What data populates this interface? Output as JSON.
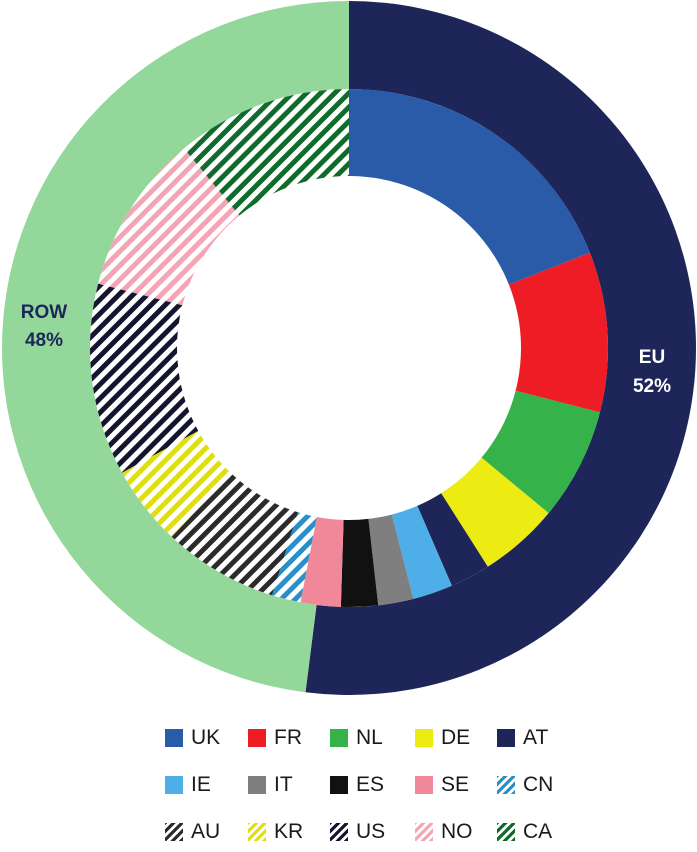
{
  "chart_data": {
    "type": "pie",
    "subtype": "nested-donut",
    "title": "",
    "outer_ring": [
      {
        "name": "EU",
        "label": "EU",
        "percent_label": "52%",
        "value": 52,
        "color": "#1e2659"
      },
      {
        "name": "ROW",
        "label": "ROW",
        "percent_label": "48%",
        "value": 48,
        "color": "#93d89a"
      }
    ],
    "inner_ring": [
      {
        "name": "UK",
        "value": 19.0,
        "group": "EU",
        "color": "#2a5ba8",
        "pattern": "solid"
      },
      {
        "name": "FR",
        "value": 10.0,
        "group": "EU",
        "color": "#ee1c25",
        "pattern": "solid"
      },
      {
        "name": "NL",
        "value": 7.0,
        "group": "EU",
        "color": "#35b34a",
        "pattern": "solid"
      },
      {
        "name": "DE",
        "value": 5.0,
        "group": "EU",
        "color": "#ecec13",
        "pattern": "solid"
      },
      {
        "name": "AT",
        "value": 2.5,
        "group": "EU",
        "color": "#1e2659",
        "pattern": "solid"
      },
      {
        "name": "IE",
        "value": 2.5,
        "group": "EU",
        "color": "#4daee8",
        "pattern": "solid"
      },
      {
        "name": "IT",
        "value": 2.2,
        "group": "EU",
        "color": "#7f7f7f",
        "pattern": "solid"
      },
      {
        "name": "ES",
        "value": 2.3,
        "group": "EU",
        "color": "#111111",
        "pattern": "solid"
      },
      {
        "name": "SE",
        "value": 2.5,
        "group": "EU",
        "color": "#f1889a",
        "pattern": "solid"
      },
      {
        "name": "CN",
        "value": 1.8,
        "group": "ROW",
        "color": "#2a8fc6",
        "pattern": "hatch"
      },
      {
        "name": "AU",
        "value": 7.2,
        "group": "ROW",
        "color": "#2b2b2b",
        "pattern": "hatch"
      },
      {
        "name": "KR",
        "value": 5.0,
        "group": "ROW",
        "color": "#dede10",
        "pattern": "hatch"
      },
      {
        "name": "US",
        "value": 12.0,
        "group": "ROW",
        "color": "#151530",
        "pattern": "hatch"
      },
      {
        "name": "NO",
        "value": 10.0,
        "group": "ROW",
        "color": "#f3a5b5",
        "pattern": "hatch"
      },
      {
        "name": "CA",
        "value": 11.0,
        "group": "ROW",
        "color": "#0f6a2b",
        "pattern": "hatch"
      }
    ],
    "legend": {
      "placement": "bottom",
      "entries": [
        "UK",
        "FR",
        "NL",
        "DE",
        "AT",
        "IE",
        "IT",
        "ES",
        "SE",
        "CN",
        "AU",
        "KR",
        "US",
        "NO",
        "CA"
      ]
    }
  }
}
